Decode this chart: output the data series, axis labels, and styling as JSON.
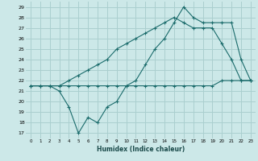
{
  "xlabel": "Humidex (Indice chaleur)",
  "bg_color": "#cce8e8",
  "grid_color": "#aacfcf",
  "line_color": "#1a6b6b",
  "x": [
    0,
    1,
    2,
    3,
    4,
    5,
    6,
    7,
    8,
    9,
    10,
    11,
    12,
    13,
    14,
    15,
    16,
    17,
    18,
    19,
    20,
    21,
    22,
    23
  ],
  "line1": [
    21.5,
    21.5,
    21.5,
    21.0,
    19.5,
    17.0,
    18.5,
    18.0,
    19.5,
    20.0,
    21.5,
    22.0,
    23.5,
    25.0,
    26.0,
    27.5,
    29.0,
    28.0,
    27.5,
    27.5,
    27.5,
    27.5,
    24.0,
    22.0
  ],
  "line2": [
    21.5,
    21.5,
    21.5,
    21.5,
    22.0,
    22.5,
    23.0,
    23.5,
    24.0,
    25.0,
    25.5,
    26.0,
    26.5,
    27.0,
    27.5,
    28.0,
    27.5,
    27.0,
    27.0,
    27.0,
    25.5,
    24.0,
    22.0,
    22.0
  ],
  "line3": [
    21.5,
    21.5,
    21.5,
    21.5,
    21.5,
    21.5,
    21.5,
    21.5,
    21.5,
    21.5,
    21.5,
    21.5,
    21.5,
    21.5,
    21.5,
    21.5,
    21.5,
    21.5,
    21.5,
    21.5,
    22.0,
    22.0,
    22.0,
    22.0
  ],
  "ylim_min": 16.5,
  "ylim_max": 29.5,
  "xlim_min": -0.5,
  "xlim_max": 23.5,
  "yticks": [
    17,
    18,
    19,
    20,
    21,
    22,
    23,
    24,
    25,
    26,
    27,
    28,
    29
  ],
  "xticks": [
    0,
    1,
    2,
    3,
    4,
    5,
    6,
    7,
    8,
    9,
    10,
    11,
    12,
    13,
    14,
    15,
    16,
    17,
    18,
    19,
    20,
    21,
    22,
    23
  ]
}
